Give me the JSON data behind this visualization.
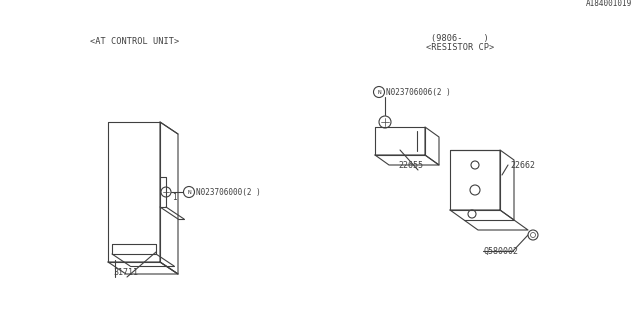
{
  "bg_color": "#ffffff",
  "line_color": "#404040",
  "text_color": "#404040",
  "fig_width": 6.4,
  "fig_height": 3.2,
  "dpi": 100,
  "watermark": "A184001019",
  "labels": {
    "part_31711": "31711",
    "part_N023706000": "N023706000(2 )",
    "label_at": "<AT CONTROL UNIT>",
    "part_Q580002": "Q580002",
    "part_22655": "22655",
    "part_22662": "22662",
    "part_N023706006": "N023706006(2 )",
    "label_resistor": "<RESISTOR CP>",
    "label_resistor2": "(9806-    )"
  }
}
